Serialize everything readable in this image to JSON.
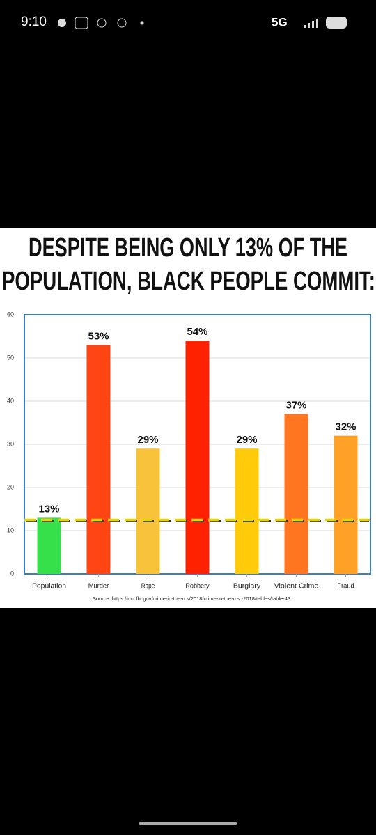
{
  "status_bar": {
    "time": "9:10",
    "network": "5G"
  },
  "chart_data": {
    "type": "bar",
    "title": [
      "DESPITE BEING ONLY 13% OF THE",
      "POPULATION, BLACK PEOPLE COMMIT:"
    ],
    "categories": [
      "Population",
      "Murder",
      "Rape",
      "Robbery",
      "Burglary",
      "Violent Crime",
      "Fraud"
    ],
    "values": [
      13,
      53,
      29,
      54,
      29,
      37,
      32
    ],
    "value_labels": [
      "13%",
      "53%",
      "29%",
      "54%",
      "29%",
      "37%",
      "32%"
    ],
    "colors": [
      "#35e04a",
      "#ff4513",
      "#f8c33b",
      "#ff2200",
      "#ffcb0a",
      "#ff7520",
      "#ffa127"
    ],
    "ylim": [
      0,
      60
    ],
    "yticks": [
      0,
      10,
      20,
      30,
      40,
      50,
      60
    ],
    "grid": true,
    "reference_line": 12.5,
    "reference_color": "#e8d800",
    "source": "Source: https://ucr.fbi.gov/crime-in-the-u.s/2018/crime-in-the-u.s.-2018/tables/table-43"
  }
}
